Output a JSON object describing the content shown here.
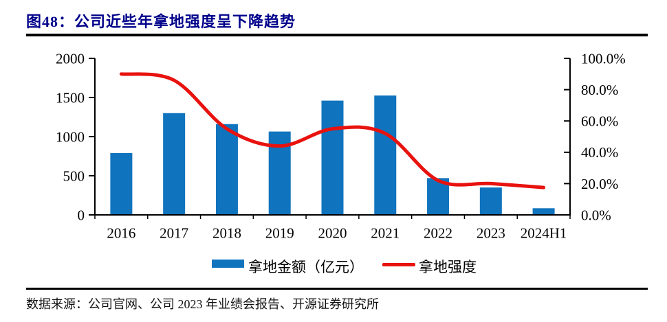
{
  "figure": {
    "title": "图48：公司近些年拿地强度呈下降趋势",
    "source": "数据来源：公司官网、公司 2023 年业绩会报告、开源证券研究所"
  },
  "chart_data": {
    "type": "bar+line",
    "title": "公司近些年拿地强度呈下降趋势",
    "categories": [
      "2016",
      "2017",
      "2018",
      "2019",
      "2020",
      "2021",
      "2022",
      "2023",
      "2024H1"
    ],
    "series": [
      {
        "name": "拿地金额（亿元）",
        "type": "bar",
        "axis": "left",
        "values": [
          790,
          1300,
          1160,
          1065,
          1460,
          1525,
          470,
          350,
          85
        ],
        "color": "#1073BD"
      },
      {
        "name": "拿地强度",
        "type": "line",
        "axis": "right",
        "unit": "%",
        "values": [
          90,
          86,
          55,
          44,
          55,
          52,
          22,
          20,
          17.5
        ],
        "color": "#E8120E"
      }
    ],
    "left_axis": {
      "min": 0,
      "max": 2000,
      "ticks": [
        2000,
        1500,
        1000,
        500,
        0
      ],
      "labels": [
        "2000",
        "1500",
        "1000",
        "500",
        "0"
      ]
    },
    "right_axis": {
      "min": 0,
      "max": 100,
      "ticks": [
        100,
        80,
        60,
        40,
        20,
        0
      ],
      "labels": [
        "100.0%",
        "80.0%",
        "60.0%",
        "40.0%",
        "20.0%",
        "0.0%"
      ]
    },
    "grid": false,
    "legend_position": "bottom-center"
  },
  "colors": {
    "title": "#00008B",
    "bar": "#1073BD",
    "line": "#E8120E",
    "axis": "#000000",
    "rule": "#000000"
  }
}
